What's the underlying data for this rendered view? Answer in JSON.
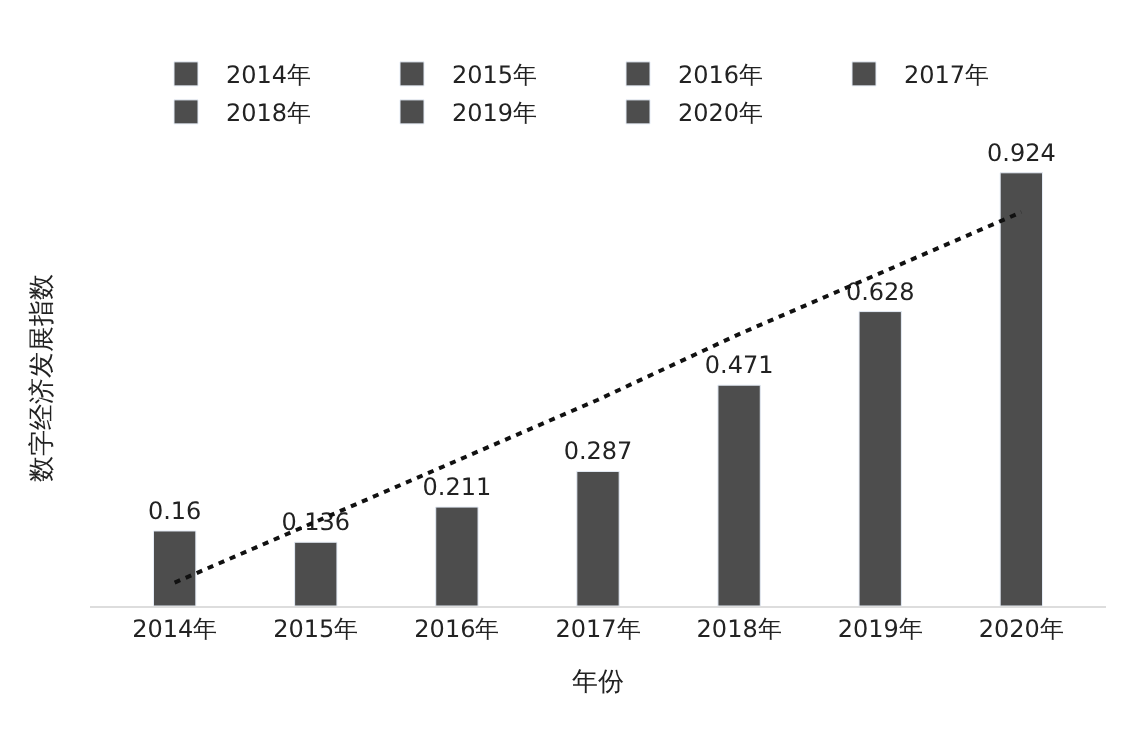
{
  "chart_data": {
    "type": "bar",
    "xlabel": "年份",
    "ylabel": "数字经济发展指数",
    "categories": [
      "2014年",
      "2015年",
      "2016年",
      "2017年",
      "2018年",
      "2019年",
      "2020年"
    ],
    "series": [
      {
        "name": "2014年",
        "color": "#4d4d4d",
        "values": [
          0.16,
          null,
          null,
          null,
          null,
          null,
          null
        ],
        "value_labels": [
          "0.16",
          null,
          null,
          null,
          null,
          null,
          null
        ]
      },
      {
        "name": "2015年",
        "color": "#4d4d4d",
        "values": [
          null,
          0.136,
          null,
          null,
          null,
          null,
          null
        ],
        "value_labels": [
          null,
          "0.136",
          null,
          null,
          null,
          null,
          null
        ]
      },
      {
        "name": "2016年",
        "color": "#4d4d4d",
        "values": [
          null,
          null,
          0.211,
          null,
          null,
          null,
          null
        ],
        "value_labels": [
          null,
          null,
          "0.211",
          null,
          null,
          null,
          null
        ]
      },
      {
        "name": "2017年",
        "color": "#4d4d4d",
        "values": [
          null,
          null,
          null,
          0.287,
          null,
          null,
          null
        ],
        "value_labels": [
          null,
          null,
          null,
          "0.287",
          null,
          null,
          null
        ]
      },
      {
        "name": "2018年",
        "color": "#4d4d4d",
        "values": [
          null,
          null,
          null,
          null,
          0.471,
          null,
          null
        ],
        "value_labels": [
          null,
          null,
          null,
          null,
          "0.471",
          null,
          null
        ]
      },
      {
        "name": "2019年",
        "color": "#4d4d4d",
        "values": [
          null,
          null,
          null,
          null,
          null,
          0.628,
          null
        ],
        "value_labels": [
          null,
          null,
          null,
          null,
          null,
          "0.628",
          null
        ]
      },
      {
        "name": "2020年",
        "color": "#4d4d4d",
        "values": [
          null,
          null,
          null,
          null,
          null,
          null,
          0.924
        ],
        "value_labels": [
          null,
          null,
          null,
          null,
          null,
          null,
          "0.924"
        ]
      },
      {
        "type": "line",
        "color": "#111111",
        "line_style": "dotted",
        "marker": "none",
        "values": [
          0.05,
          0.18,
          0.31,
          0.44,
          0.58,
          0.71,
          0.84
        ]
      }
    ],
    "legend": "top"
  }
}
